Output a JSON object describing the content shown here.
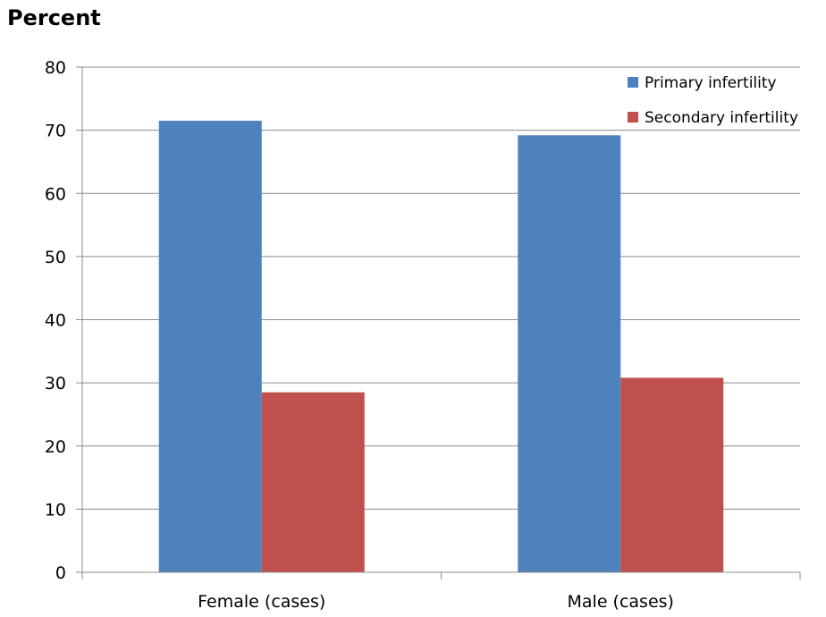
{
  "chart_data": {
    "type": "bar",
    "ylabel": "Percent",
    "xlabel": "",
    "categories": [
      "Female (cases)",
      "Male (cases)"
    ],
    "series": [
      {
        "name": "Primary infertility",
        "values": [
          71.5,
          69.2
        ],
        "color": "#4F81BD"
      },
      {
        "name": "Secondary infertility",
        "values": [
          28.5,
          30.8
        ],
        "color": "#C0504D"
      }
    ],
    "ylim": [
      0,
      80
    ],
    "yticks": [
      "0",
      "10",
      "20",
      "30",
      "40",
      "50",
      "60",
      "70",
      "80"
    ],
    "grid": true,
    "legend": "top-right"
  }
}
